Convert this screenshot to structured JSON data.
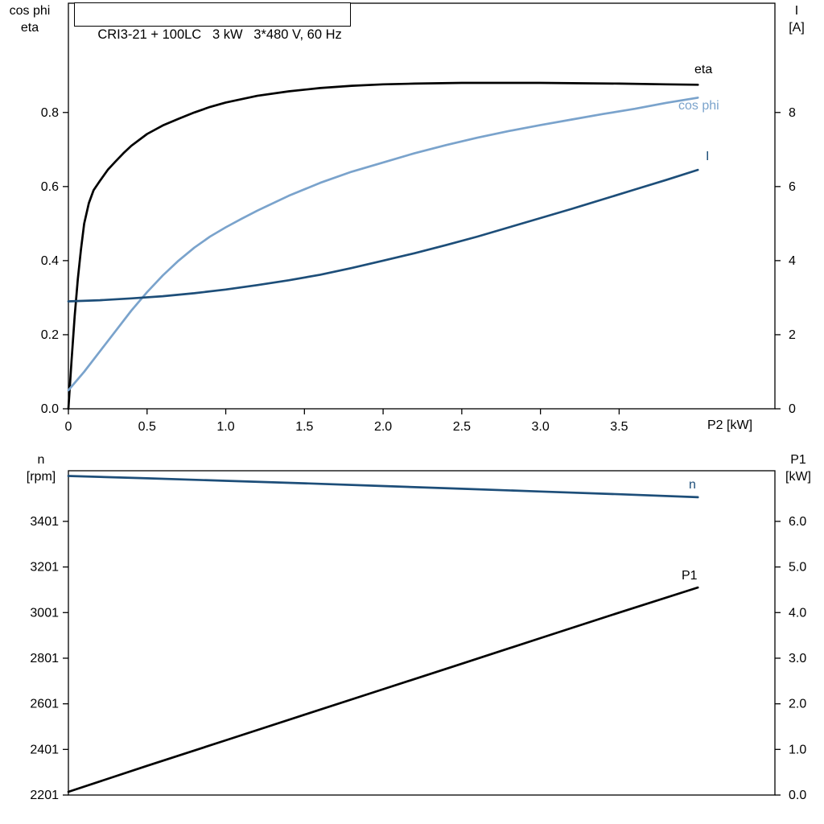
{
  "chart_data": [
    {
      "type": "line",
      "title": "CRI3-21 + 100LC   3 kW   3*480 V, 60 Hz",
      "x": {
        "label": "P2 [kW]",
        "min": 0,
        "max": 4.49,
        "ticks": [
          0,
          0.5,
          1.0,
          1.5,
          2.0,
          2.5,
          3.0,
          3.5
        ],
        "tick_labels": [
          "0",
          "0.5",
          "1.0",
          "1.5",
          "2.0",
          "2.5",
          "3.0",
          "3.5"
        ]
      },
      "left": {
        "label_lines": [
          "cos phi",
          "eta"
        ],
        "min": 0,
        "max": 1.095,
        "ticks": [
          0,
          0.2,
          0.4,
          0.6,
          0.8
        ],
        "tick_labels": [
          "0.0",
          "0.2",
          "0.4",
          "0.6",
          "0.8"
        ]
      },
      "right": {
        "label_lines": [
          "I",
          "[A]"
        ],
        "min": 0,
        "max": 10.95,
        "ticks": [
          0,
          2,
          4,
          6,
          8
        ],
        "tick_labels": [
          "0",
          "2",
          "4",
          "6",
          "8"
        ]
      },
      "series": [
        {
          "name": "eta",
          "axis": "left",
          "color": "#000000",
          "x": [
            0,
            0.02,
            0.04,
            0.06,
            0.08,
            0.1,
            0.13,
            0.16,
            0.2,
            0.25,
            0.3,
            0.35,
            0.4,
            0.5,
            0.6,
            0.7,
            0.8,
            0.9,
            1.0,
            1.2,
            1.4,
            1.6,
            1.8,
            2.0,
            2.2,
            2.5,
            2.8,
            3.0,
            3.2,
            3.5,
            3.8,
            4.0
          ],
          "y": [
            0,
            0.13,
            0.25,
            0.35,
            0.43,
            0.5,
            0.555,
            0.59,
            0.615,
            0.645,
            0.668,
            0.69,
            0.71,
            0.742,
            0.765,
            0.783,
            0.8,
            0.815,
            0.827,
            0.845,
            0.857,
            0.866,
            0.872,
            0.876,
            0.878,
            0.88,
            0.88,
            0.88,
            0.879,
            0.878,
            0.876,
            0.875
          ]
        },
        {
          "name": "cos phi",
          "axis": "left",
          "color": "#7aa3cc",
          "x": [
            0,
            0.1,
            0.2,
            0.3,
            0.4,
            0.5,
            0.6,
            0.7,
            0.8,
            0.9,
            1.0,
            1.1,
            1.2,
            1.4,
            1.6,
            1.8,
            2.0,
            2.2,
            2.4,
            2.6,
            2.8,
            3.0,
            3.2,
            3.4,
            3.6,
            3.8,
            4.0
          ],
          "y": [
            0.05,
            0.1,
            0.155,
            0.21,
            0.265,
            0.315,
            0.36,
            0.4,
            0.435,
            0.465,
            0.49,
            0.513,
            0.535,
            0.575,
            0.61,
            0.64,
            0.665,
            0.69,
            0.712,
            0.732,
            0.75,
            0.766,
            0.781,
            0.796,
            0.81,
            0.826,
            0.84
          ]
        },
        {
          "name": "I",
          "axis": "right",
          "color": "#1d4e79",
          "x": [
            0,
            0.2,
            0.4,
            0.6,
            0.8,
            1.0,
            1.2,
            1.4,
            1.6,
            1.8,
            2.0,
            2.2,
            2.4,
            2.6,
            2.8,
            3.0,
            3.2,
            3.4,
            3.6,
            3.8,
            4.0
          ],
          "y": [
            2.9,
            2.93,
            2.98,
            3.04,
            3.12,
            3.22,
            3.34,
            3.47,
            3.62,
            3.8,
            4.0,
            4.2,
            4.42,
            4.65,
            4.9,
            5.15,
            5.4,
            5.66,
            5.92,
            6.18,
            6.45
          ]
        }
      ]
    },
    {
      "type": "line",
      "x": {
        "label": "",
        "min": 0,
        "max": 4.49,
        "ticks": [],
        "tick_labels": []
      },
      "left": {
        "label_lines": [
          "n",
          "[rpm]"
        ],
        "min": 2201,
        "max": 3623,
        "ticks": [
          2201,
          2401,
          2601,
          2801,
          3001,
          3201,
          3401
        ],
        "tick_labels": [
          "2201",
          "2401",
          "2601",
          "2801",
          "3001",
          "3201",
          "3401"
        ]
      },
      "right": {
        "label_lines": [
          "P1",
          "[kW]"
        ],
        "min": 0,
        "max": 7.11,
        "ticks": [
          0,
          1,
          2,
          3,
          4,
          5,
          6
        ],
        "tick_labels": [
          "0.0",
          "1.0",
          "2.0",
          "3.0",
          "4.0",
          "5.0",
          "6.0"
        ]
      },
      "series": [
        {
          "name": "n",
          "axis": "left",
          "color": "#1d4e79",
          "x": [
            0,
            0.5,
            1.0,
            1.5,
            2.0,
            2.5,
            3.0,
            3.5,
            4.0
          ],
          "y": [
            3600,
            3590,
            3579,
            3568,
            3556,
            3544,
            3532,
            3520,
            3507
          ]
        },
        {
          "name": "P1",
          "axis": "right",
          "color": "#000000",
          "x": [
            0,
            0.5,
            1.0,
            1.5,
            2.0,
            2.5,
            3.0,
            3.5,
            4.0
          ],
          "y": [
            0.07,
            0.64,
            1.2,
            1.76,
            2.32,
            2.88,
            3.44,
            4.0,
            4.55
          ]
        }
      ]
    }
  ]
}
